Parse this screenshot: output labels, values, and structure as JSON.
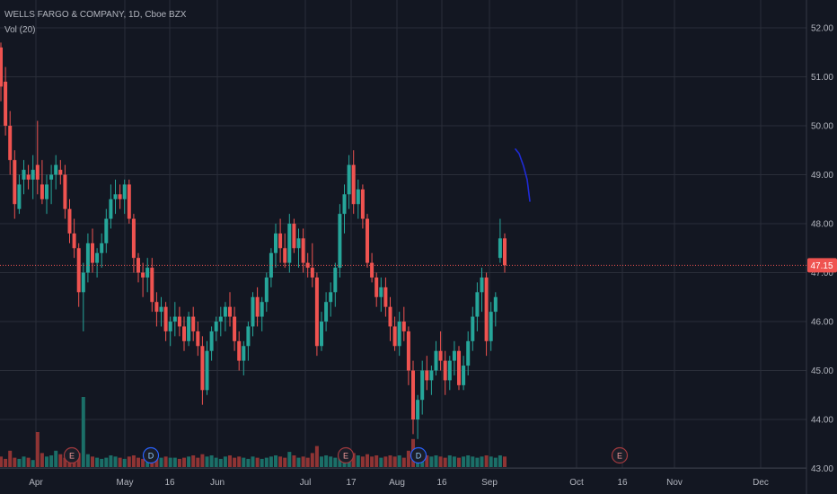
{
  "header": {
    "symbol_title": "WELLS FARGO & COMPANY, 1D, Cboe BZX",
    "indicator": "Vol (20)"
  },
  "colors": {
    "background": "#131722",
    "grid": "#2a2e39",
    "up": "#26a69a",
    "down": "#ef5350",
    "up_volume": "#1b6f68",
    "down_volume": "#8f3434",
    "text": "#b2b5be",
    "price_line": "#ef5350",
    "drawing": "#1f2bd6"
  },
  "chart_data": {
    "type": "candlestick",
    "title": "WELLS FARGO & COMPANY, 1D, Cboe BZX",
    "price_axis": {
      "ticks": [
        "52.00",
        "51.00",
        "50.00",
        "49.00",
        "48.00",
        "47.00",
        "46.00",
        "45.00",
        "44.00",
        "43.00"
      ],
      "range": [
        42.6,
        52.4
      ]
    },
    "time_axis": {
      "labels": [
        "Apr",
        "May",
        "16",
        "Jun",
        "Jul",
        "17",
        "Aug",
        "16",
        "Sep",
        "Oct",
        "16",
        "Nov",
        "Dec"
      ]
    },
    "last_price": "47.15",
    "events": [
      {
        "letter": "E",
        "kind": "earnings",
        "date_label": "Apr"
      },
      {
        "letter": "D",
        "kind": "dividend",
        "date_label": "May"
      },
      {
        "letter": "E",
        "kind": "earnings",
        "date_label": "Jul 14"
      },
      {
        "letter": "D",
        "kind": "dividend",
        "date_label": "Aug"
      },
      {
        "letter": "E",
        "kind": "earnings",
        "date_label": "Oct 14"
      }
    ],
    "volume_indicator": "Vol (20)",
    "ohlc": [
      [
        51.6,
        51.7,
        50.5,
        50.8
      ],
      [
        50.9,
        51.2,
        49.8,
        50.0
      ],
      [
        50.0,
        50.3,
        49.0,
        49.3
      ],
      [
        49.3,
        49.5,
        48.1,
        48.4
      ],
      [
        48.3,
        49.0,
        48.2,
        48.8
      ],
      [
        48.9,
        49.3,
        48.6,
        49.1
      ],
      [
        49.0,
        49.2,
        48.7,
        48.9
      ],
      [
        48.9,
        49.4,
        48.5,
        49.1
      ],
      [
        49.2,
        50.1,
        48.6,
        48.9
      ],
      [
        48.8,
        49.3,
        48.4,
        48.5
      ],
      [
        48.5,
        49.0,
        48.2,
        48.8
      ],
      [
        48.9,
        49.2,
        48.4,
        49.0
      ],
      [
        49.0,
        49.4,
        48.7,
        49.2
      ],
      [
        49.1,
        49.3,
        48.8,
        49.0
      ],
      [
        49.0,
        49.2,
        48.1,
        48.3
      ],
      [
        48.3,
        48.5,
        47.6,
        47.8
      ],
      [
        47.8,
        48.1,
        47.3,
        47.5
      ],
      [
        47.5,
        47.6,
        46.3,
        46.6
      ],
      [
        46.6,
        47.2,
        45.8,
        47.0
      ],
      [
        47.0,
        47.8,
        46.8,
        47.6
      ],
      [
        47.6,
        47.9,
        47.0,
        47.2
      ],
      [
        47.2,
        47.5,
        46.9,
        47.4
      ],
      [
        47.4,
        47.8,
        47.1,
        47.6
      ],
      [
        47.6,
        48.3,
        47.4,
        48.1
      ],
      [
        48.1,
        48.8,
        47.9,
        48.5
      ],
      [
        48.5,
        48.9,
        48.2,
        48.6
      ],
      [
        48.6,
        48.8,
        48.3,
        48.5
      ],
      [
        48.5,
        48.9,
        48.2,
        48.8
      ],
      [
        48.8,
        48.9,
        48.0,
        48.1
      ],
      [
        48.1,
        48.2,
        47.0,
        47.3
      ],
      [
        47.3,
        47.4,
        46.8,
        47.0
      ],
      [
        47.0,
        47.2,
        46.5,
        46.9
      ],
      [
        46.9,
        47.3,
        46.6,
        47.1
      ],
      [
        47.1,
        47.3,
        46.2,
        46.4
      ],
      [
        46.4,
        46.6,
        45.9,
        46.2
      ],
      [
        46.2,
        46.5,
        45.9,
        46.3
      ],
      [
        46.3,
        46.4,
        45.6,
        45.8
      ],
      [
        45.8,
        46.1,
        45.5,
        46.0
      ],
      [
        46.0,
        46.4,
        45.7,
        46.1
      ],
      [
        46.1,
        46.3,
        45.7,
        45.9
      ],
      [
        45.9,
        46.1,
        45.4,
        45.6
      ],
      [
        45.6,
        46.2,
        45.5,
        46.1
      ],
      [
        46.1,
        46.3,
        45.6,
        45.8
      ],
      [
        45.8,
        46.0,
        45.3,
        45.5
      ],
      [
        45.5,
        45.7,
        44.3,
        44.6
      ],
      [
        44.6,
        45.6,
        44.5,
        45.4
      ],
      [
        45.4,
        45.9,
        45.2,
        45.8
      ],
      [
        45.8,
        46.1,
        45.6,
        46.0
      ],
      [
        46.0,
        46.3,
        45.7,
        46.1
      ],
      [
        46.1,
        46.4,
        45.8,
        46.3
      ],
      [
        46.3,
        46.6,
        45.9,
        46.1
      ],
      [
        46.1,
        46.3,
        45.4,
        45.6
      ],
      [
        45.6,
        45.8,
        45.0,
        45.2
      ],
      [
        45.2,
        45.6,
        44.9,
        45.5
      ],
      [
        45.5,
        46.0,
        45.2,
        45.9
      ],
      [
        45.9,
        46.6,
        45.7,
        46.5
      ],
      [
        46.5,
        46.7,
        45.9,
        46.1
      ],
      [
        46.1,
        46.5,
        45.8,
        46.4
      ],
      [
        46.4,
        47.0,
        46.2,
        46.9
      ],
      [
        46.9,
        47.5,
        46.7,
        47.4
      ],
      [
        47.4,
        48.0,
        47.1,
        47.8
      ],
      [
        47.8,
        48.1,
        47.2,
        47.5
      ],
      [
        47.5,
        47.8,
        47.1,
        47.2
      ],
      [
        47.2,
        48.2,
        47.0,
        48.0
      ],
      [
        48.0,
        48.1,
        47.4,
        47.5
      ],
      [
        47.5,
        47.9,
        47.1,
        47.7
      ],
      [
        47.7,
        47.9,
        47.0,
        47.2
      ],
      [
        47.2,
        47.4,
        46.9,
        47.1
      ],
      [
        47.1,
        47.6,
        46.7,
        46.9
      ],
      [
        46.9,
        47.0,
        45.3,
        45.5
      ],
      [
        45.5,
        46.2,
        45.4,
        46.0
      ],
      [
        46.0,
        46.6,
        45.8,
        46.4
      ],
      [
        46.4,
        46.8,
        46.1,
        46.6
      ],
      [
        46.6,
        47.2,
        46.3,
        47.1
      ],
      [
        47.1,
        48.4,
        46.9,
        48.2
      ],
      [
        48.2,
        48.8,
        47.8,
        48.6
      ],
      [
        48.6,
        49.4,
        48.3,
        49.2
      ],
      [
        49.2,
        49.5,
        48.2,
        48.4
      ],
      [
        48.4,
        48.9,
        48.1,
        48.7
      ],
      [
        48.7,
        48.8,
        47.9,
        48.1
      ],
      [
        48.1,
        48.2,
        47.1,
        47.2
      ],
      [
        47.2,
        47.4,
        46.8,
        46.9
      ],
      [
        46.9,
        47.0,
        46.3,
        46.5
      ],
      [
        46.5,
        46.9,
        46.2,
        46.7
      ],
      [
        46.7,
        46.9,
        46.1,
        46.3
      ],
      [
        46.3,
        46.5,
        45.6,
        45.9
      ],
      [
        45.9,
        46.1,
        45.4,
        45.5
      ],
      [
        45.5,
        46.2,
        45.3,
        46.0
      ],
      [
        46.0,
        46.3,
        45.6,
        45.8
      ],
      [
        45.8,
        45.9,
        44.7,
        45.0
      ],
      [
        45.0,
        45.2,
        43.7,
        44.0
      ],
      [
        44.0,
        44.5,
        43.6,
        44.4
      ],
      [
        44.4,
        45.2,
        44.1,
        45.0
      ],
      [
        45.0,
        45.3,
        44.6,
        44.8
      ],
      [
        44.8,
        45.1,
        44.5,
        45.0
      ],
      [
        45.0,
        45.6,
        44.9,
        45.4
      ],
      [
        45.4,
        45.8,
        45.0,
        45.2
      ],
      [
        45.2,
        45.4,
        44.5,
        44.8
      ],
      [
        44.8,
        45.3,
        44.6,
        45.2
      ],
      [
        45.2,
        45.6,
        44.9,
        45.4
      ],
      [
        45.4,
        45.5,
        44.6,
        44.7
      ],
      [
        44.7,
        45.3,
        44.6,
        45.1
      ],
      [
        45.1,
        45.8,
        44.9,
        45.6
      ],
      [
        45.6,
        46.3,
        45.4,
        46.1
      ],
      [
        46.1,
        46.8,
        45.8,
        46.6
      ],
      [
        46.6,
        47.1,
        46.2,
        46.9
      ],
      [
        46.9,
        47.0,
        45.3,
        45.6
      ],
      [
        45.6,
        46.4,
        45.4,
        46.2
      ],
      [
        46.2,
        46.6,
        45.9,
        46.5
      ],
      [
        47.3,
        48.1,
        47.2,
        47.7
      ],
      [
        47.7,
        47.8,
        47.0,
        47.15
      ]
    ],
    "volume_rel": [
      0.9,
      0.7,
      1.4,
      0.8,
      0.7,
      0.9,
      0.8,
      0.6,
      3.0,
      1.2,
      0.9,
      1.0,
      1.4,
      1.1,
      0.8,
      1.2,
      1.0,
      1.2,
      6.0,
      1.1,
      0.9,
      0.8,
      0.7,
      0.8,
      1.0,
      0.9,
      0.8,
      0.7,
      0.9,
      1.0,
      0.8,
      0.7,
      0.8,
      0.9,
      0.7,
      0.8,
      0.9,
      0.8,
      0.8,
      0.7,
      0.8,
      0.9,
      1.0,
      0.8,
      1.1,
      0.9,
      1.0,
      0.8,
      0.7,
      0.9,
      1.0,
      0.8,
      0.9,
      0.8,
      0.7,
      0.9,
      0.8,
      0.7,
      0.8,
      0.9,
      1.0,
      0.9,
      0.8,
      1.3,
      1.0,
      0.8,
      0.9,
      0.8,
      1.2,
      1.8,
      0.9,
      1.0,
      0.9,
      0.8,
      1.2,
      1.0,
      1.4,
      1.2,
      1.0,
      0.9,
      1.1,
      0.9,
      1.0,
      0.8,
      0.9,
      1.0,
      0.9,
      1.0,
      0.8,
      1.4,
      2.4,
      1.3,
      1.2,
      1.0,
      0.9,
      1.0,
      0.9,
      0.8,
      1.0,
      0.9,
      0.8,
      0.9,
      1.0,
      0.9,
      0.8,
      0.9,
      1.0,
      0.9,
      0.8,
      1.0,
      0.9
    ]
  }
}
